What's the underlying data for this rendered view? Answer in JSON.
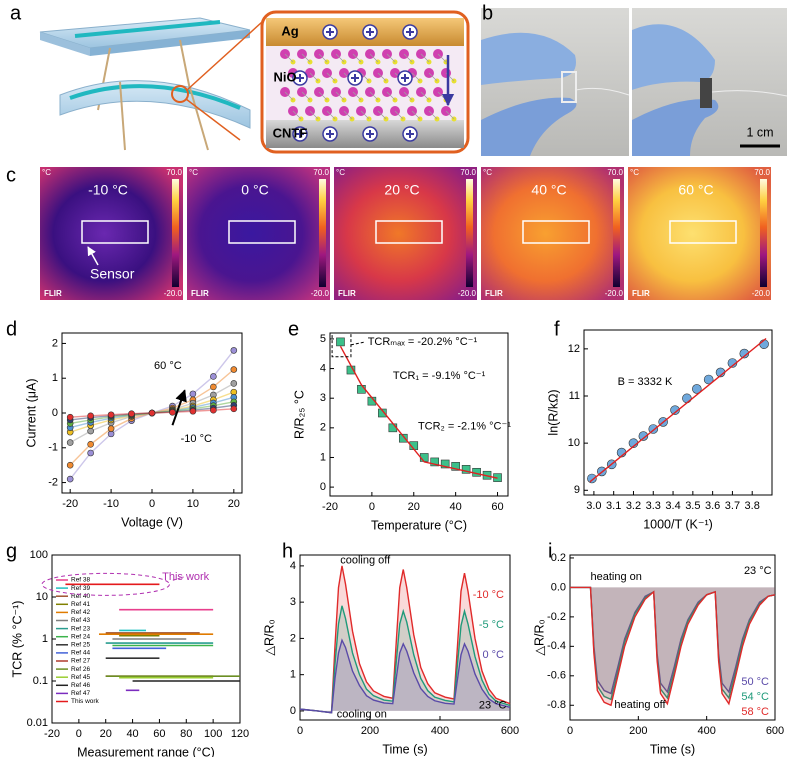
{
  "panel_labels": [
    "a",
    "b",
    "c",
    "d",
    "e",
    "f",
    "g",
    "h",
    "i"
  ],
  "panel_a": {
    "layers": [
      "Ag",
      "NiO",
      "CNTF"
    ]
  },
  "panel_b": {
    "scale_bar": "1 cm"
  },
  "panel_c": {
    "temperatures": [
      "-10 °C",
      "0 °C",
      "20 °C",
      "40 °C",
      "60 °C"
    ],
    "unit": "°C",
    "max": "70.0",
    "min": "-20.0",
    "brand": "FLIR",
    "sensor": "Sensor"
  },
  "chart_data": [
    {
      "type": "line",
      "xlabel": "Voltage (V)",
      "ylabel": "Current (μA)",
      "x": [
        -20,
        -15,
        -10,
        -5,
        0,
        5,
        10,
        15,
        20
      ],
      "xlim": [
        -22,
        22
      ],
      "xticks": [
        -20,
        -10,
        0,
        10,
        20
      ],
      "ylim": [
        -2.3,
        2.3
      ],
      "yticks": [
        -2,
        -1,
        0,
        1,
        2
      ],
      "annotations": [
        "60 °C",
        "-10 °C"
      ],
      "series": [
        {
          "color": "#9b8fd6",
          "marker": "circle",
          "values": [
            -1.9,
            -1.15,
            -0.6,
            -0.22,
            0,
            0.2,
            0.55,
            1.05,
            1.8
          ]
        },
        {
          "color": "#f08a30",
          "marker": "circle",
          "values": [
            -1.5,
            -0.9,
            -0.45,
            -0.16,
            0,
            0.14,
            0.38,
            0.75,
            1.25
          ]
        },
        {
          "color": "#a0a0a0",
          "marker": "circle",
          "values": [
            -0.85,
            -0.52,
            -0.28,
            -0.1,
            0,
            0.1,
            0.28,
            0.52,
            0.85
          ]
        },
        {
          "color": "#f0c020",
          "marker": "circle",
          "values": [
            -0.55,
            -0.36,
            -0.2,
            -0.08,
            0,
            0.08,
            0.2,
            0.38,
            0.6
          ]
        },
        {
          "color": "#4a90d0",
          "marker": "circle",
          "values": [
            -0.42,
            -0.27,
            -0.15,
            -0.06,
            0,
            0.06,
            0.16,
            0.29,
            0.45
          ]
        },
        {
          "color": "#60b040",
          "marker": "circle",
          "values": [
            -0.3,
            -0.2,
            -0.11,
            -0.05,
            0,
            0.05,
            0.12,
            0.21,
            0.32
          ]
        },
        {
          "color": "#304070",
          "marker": "circle",
          "values": [
            -0.2,
            -0.13,
            -0.08,
            -0.03,
            0,
            0.03,
            0.08,
            0.14,
            0.22
          ]
        },
        {
          "color": "#e03030",
          "marker": "circle",
          "values": [
            -0.12,
            -0.08,
            -0.05,
            -0.02,
            0,
            0.02,
            0.05,
            0.08,
            0.12
          ]
        }
      ]
    },
    {
      "type": "scatter",
      "xlabel": "Temperature (°C)",
      "ylabel": "R/R₂₅ °C",
      "xlim": [
        -20,
        65
      ],
      "xticks": [
        -20,
        0,
        20,
        40,
        60
      ],
      "ylim": [
        -0.3,
        5.2
      ],
      "yticks": [
        0,
        1,
        2,
        3,
        4,
        5
      ],
      "annotations": [
        "TCRₘₐₓ = -20.2% °C⁻¹",
        "TCR₁ = -9.1% °C⁻¹",
        "TCR₂ = -2.1% °C⁻¹"
      ],
      "series": [
        {
          "color": "#3cc08a",
          "marker": "square",
          "x": [
            -15,
            -10,
            -5,
            0,
            5,
            10,
            15,
            20,
            25,
            30,
            35,
            40,
            45,
            50,
            55,
            60
          ],
          "values": [
            4.9,
            3.95,
            3.3,
            2.9,
            2.5,
            2.0,
            1.65,
            1.4,
            1.0,
            0.85,
            0.78,
            0.7,
            0.6,
            0.5,
            0.4,
            0.32
          ]
        },
        {
          "color": "#e02020",
          "mode": "line",
          "x": [
            -15,
            -5,
            25,
            60
          ],
          "values": [
            4.75,
            3.45,
            0.85,
            0.3
          ]
        }
      ]
    },
    {
      "type": "scatter",
      "xlabel": "1000/T (K⁻¹)",
      "ylabel": "ln(R/kΩ)",
      "xlim": [
        2.95,
        3.9
      ],
      "xticks": [
        {
          "value": 3,
          "label": "3.0"
        },
        3.1,
        3.2,
        3.3,
        3.4,
        3.5,
        3.6,
        3.7,
        3.8
      ],
      "ylim": [
        8.9,
        12.4
      ],
      "yticks": [
        9,
        10,
        11,
        12
      ],
      "annotations": [
        "B = 3332 K"
      ],
      "series": [
        {
          "color": "#6fa8dc",
          "marker": "circle",
          "x": [
            2.99,
            3.04,
            3.09,
            3.14,
            3.2,
            3.25,
            3.3,
            3.35,
            3.41,
            3.47,
            3.52,
            3.58,
            3.64,
            3.7,
            3.76,
            3.86
          ],
          "values": [
            9.25,
            9.4,
            9.55,
            9.8,
            10.0,
            10.15,
            10.3,
            10.45,
            10.7,
            10.95,
            11.15,
            11.35,
            11.5,
            11.7,
            11.9,
            12.1
          ]
        },
        {
          "color": "#e02020",
          "mode": "line",
          "x": [
            2.98,
            3.87
          ],
          "values": [
            9.18,
            12.22
          ]
        }
      ]
    },
    {
      "type": "line",
      "xlabel": "Measurement range (°C)",
      "ylabel": "TCR (% °C⁻¹)",
      "ylog": true,
      "legend": "upper left",
      "xlim": [
        -20,
        120
      ],
      "xticks": [
        -20,
        0,
        20,
        40,
        60,
        80,
        100,
        120
      ],
      "ylim": [
        0.01,
        100
      ],
      "yticks": [
        0.01,
        0.1,
        1,
        10,
        100
      ],
      "annotations": [
        "This work"
      ],
      "series": [
        {
          "name": "Ref 38",
          "color": "#e83e8c",
          "x": [
            30,
            100
          ],
          "values": [
            5,
            5
          ]
        },
        {
          "name": "Ref 39",
          "color": "#20c0c0",
          "x": [
            30,
            50
          ],
          "values": [
            1.6,
            1.6
          ]
        },
        {
          "name": "Ref 40",
          "color": "#a0522d",
          "x": [
            20,
            90
          ],
          "values": [
            1.4,
            1.4
          ]
        },
        {
          "name": "Ref 41",
          "color": "#808000",
          "x": [
            30,
            60
          ],
          "values": [
            1.2,
            1.2
          ]
        },
        {
          "name": "Ref 42",
          "color": "#e07b00",
          "x": [
            15,
            100
          ],
          "values": [
            1.3,
            1.3
          ]
        },
        {
          "name": "Ref 43",
          "color": "#7f7f7f",
          "x": [
            25,
            80
          ],
          "values": [
            1.0,
            1.0
          ]
        },
        {
          "name": "Ref 23",
          "color": "#2a9d8f",
          "x": [
            20,
            100
          ],
          "values": [
            0.8,
            0.8
          ]
        },
        {
          "name": "Ref 24",
          "color": "#3cb44b",
          "x": [
            25,
            100
          ],
          "values": [
            0.7,
            0.7
          ]
        },
        {
          "name": "Ref 25",
          "color": "#333333",
          "x": [
            20,
            60
          ],
          "values": [
            0.35,
            0.35
          ]
        },
        {
          "name": "Ref 44",
          "color": "#4363d8",
          "x": [
            25,
            65
          ],
          "values": [
            0.6,
            0.6
          ]
        },
        {
          "name": "Ref 27",
          "color": "#b03a2e",
          "x": [
            20,
            100
          ],
          "values": [
            0.13,
            0.13
          ]
        },
        {
          "name": "Ref 26",
          "color": "#6b8e23",
          "x": [
            20,
            120
          ],
          "values": [
            0.13,
            0.13
          ]
        },
        {
          "name": "Ref 45",
          "color": "#9acd32",
          "x": [
            30,
            100
          ],
          "values": [
            0.12,
            0.12
          ]
        },
        {
          "name": "Ref 46",
          "color": "#222222",
          "x": [
            40,
            120
          ],
          "values": [
            0.1,
            0.1
          ]
        },
        {
          "name": "Ref 47",
          "color": "#7b2cbf",
          "x": [
            35,
            45
          ],
          "values": [
            0.06,
            0.06
          ]
        },
        {
          "name": "This work",
          "color": "#e41a1c",
          "x": [
            -10,
            60
          ],
          "values": [
            20,
            20
          ]
        }
      ]
    },
    {
      "type": "line",
      "xlabel": "Time (s)",
      "ylabel": "△R/R₀",
      "area": true,
      "legend": "upper right",
      "xlim": [
        0,
        600
      ],
      "xticks": [
        0,
        200,
        400,
        600
      ],
      "ylim": [
        -0.25,
        4.3
      ],
      "yticks": [
        0,
        1,
        2,
        3,
        4
      ],
      "annotations": [
        "cooling off",
        "cooling on",
        "23 °C"
      ],
      "x": [
        0,
        50,
        90,
        100,
        110,
        120,
        130,
        150,
        170,
        190,
        210,
        240,
        265,
        275,
        285,
        295,
        305,
        325,
        345,
        365,
        385,
        415,
        440,
        450,
        460,
        470,
        480,
        500,
        520,
        540,
        560,
        600
      ],
      "series": [
        {
          "name": "-10 °C",
          "color": "#e02a2a",
          "values": [
            0.05,
            0,
            -0.05,
            1.8,
            3.4,
            4.0,
            3.5,
            2.2,
            1.3,
            0.8,
            0.55,
            0.4,
            0.35,
            1.9,
            3.4,
            3.9,
            3.4,
            2.1,
            1.2,
            0.75,
            0.5,
            0.38,
            0.33,
            1.8,
            3.3,
            3.8,
            3.3,
            2.0,
            1.1,
            0.6,
            0.35,
            0.2
          ]
        },
        {
          "name": "-5 °C",
          "color": "#1f9a7a",
          "values": [
            0.05,
            0,
            -0.05,
            1.3,
            2.4,
            2.9,
            2.55,
            1.6,
            1.0,
            0.6,
            0.42,
            0.3,
            0.27,
            1.35,
            2.4,
            2.75,
            2.45,
            1.55,
            0.9,
            0.56,
            0.38,
            0.29,
            0.25,
            1.3,
            2.35,
            2.75,
            2.4,
            1.5,
            0.85,
            0.46,
            0.27,
            0.15
          ]
        },
        {
          "name": "0 °C",
          "color": "#5a4aa8",
          "values": [
            0.05,
            0,
            -0.05,
            0.9,
            1.6,
            1.95,
            1.75,
            1.1,
            0.7,
            0.42,
            0.3,
            0.22,
            0.2,
            0.9,
            1.6,
            1.85,
            1.65,
            1.05,
            0.62,
            0.4,
            0.28,
            0.21,
            0.19,
            0.88,
            1.55,
            1.85,
            1.65,
            1.02,
            0.6,
            0.33,
            0.2,
            0.1
          ]
        }
      ]
    },
    {
      "type": "line",
      "xlabel": "Time (s)",
      "ylabel": "△R/R₀",
      "area": true,
      "legend": "lower right",
      "xlim": [
        0,
        600
      ],
      "xticks": [
        0,
        200,
        400,
        600
      ],
      "ylim": [
        -0.9,
        0.22
      ],
      "yticks": [
        -0.8,
        -0.6,
        -0.4,
        -0.2,
        {
          "value": 0,
          "label": "0.0"
        },
        0.2
      ],
      "annotations": [
        "heating on",
        "heating off",
        "23 °C"
      ],
      "x": [
        0,
        60,
        70,
        80,
        100,
        120,
        140,
        160,
        190,
        220,
        245,
        255,
        265,
        285,
        305,
        325,
        345,
        375,
        400,
        425,
        435,
        445,
        465,
        485,
        505,
        525,
        555,
        580,
        600
      ],
      "series": [
        {
          "name": "50 °C",
          "color": "#5a4aa8",
          "values": [
            0,
            0,
            -0.4,
            -0.63,
            -0.7,
            -0.72,
            -0.54,
            -0.35,
            -0.17,
            -0.06,
            -0.03,
            -0.45,
            -0.65,
            -0.71,
            -0.54,
            -0.35,
            -0.22,
            -0.1,
            -0.05,
            -0.03,
            -0.45,
            -0.65,
            -0.71,
            -0.54,
            -0.35,
            -0.22,
            -0.1,
            -0.06,
            -0.05
          ]
        },
        {
          "name": "54 °C",
          "color": "#1f9a7a",
          "values": [
            0,
            0,
            -0.43,
            -0.67,
            -0.74,
            -0.76,
            -0.57,
            -0.37,
            -0.18,
            -0.07,
            -0.03,
            -0.48,
            -0.69,
            -0.75,
            -0.57,
            -0.37,
            -0.23,
            -0.11,
            -0.05,
            -0.03,
            -0.48,
            -0.69,
            -0.75,
            -0.57,
            -0.37,
            -0.23,
            -0.11,
            -0.06,
            -0.05
          ]
        },
        {
          "name": "58 °C",
          "color": "#e02a2a",
          "values": [
            0,
            0,
            -0.45,
            -0.7,
            -0.78,
            -0.8,
            -0.6,
            -0.4,
            -0.2,
            -0.08,
            -0.03,
            -0.5,
            -0.72,
            -0.79,
            -0.6,
            -0.4,
            -0.25,
            -0.12,
            -0.05,
            -0.03,
            -0.5,
            -0.72,
            -0.79,
            -0.6,
            -0.4,
            -0.25,
            -0.12,
            -0.06,
            -0.05
          ]
        }
      ]
    }
  ]
}
